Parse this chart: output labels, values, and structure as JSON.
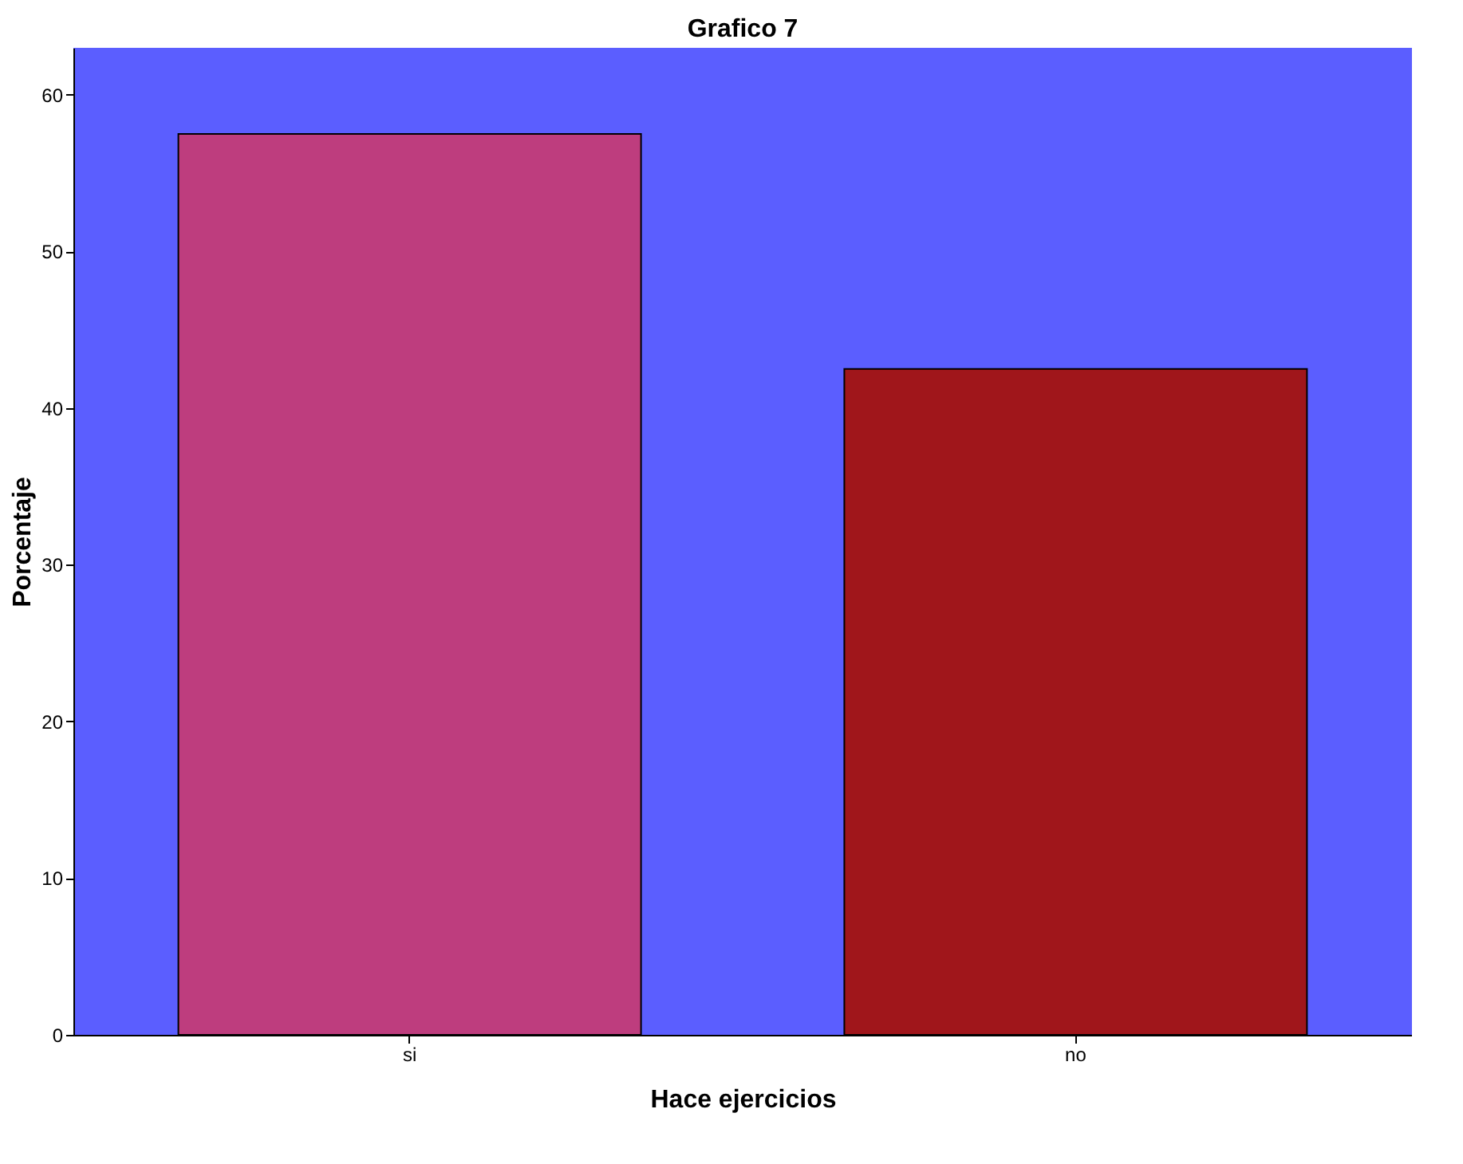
{
  "chart_data": {
    "type": "bar",
    "title": "Grafico 7",
    "xlabel": "Hace ejercicios",
    "ylabel": "Porcentaje",
    "categories": [
      "si",
      "no"
    ],
    "values": [
      57.5,
      42.5
    ],
    "colors": [
      "#be3d7e",
      "#a0161b"
    ],
    "ylim": [
      0,
      63
    ],
    "yticks": [
      0,
      10,
      20,
      30,
      40,
      50,
      60
    ],
    "grid": false,
    "legend": false
  }
}
